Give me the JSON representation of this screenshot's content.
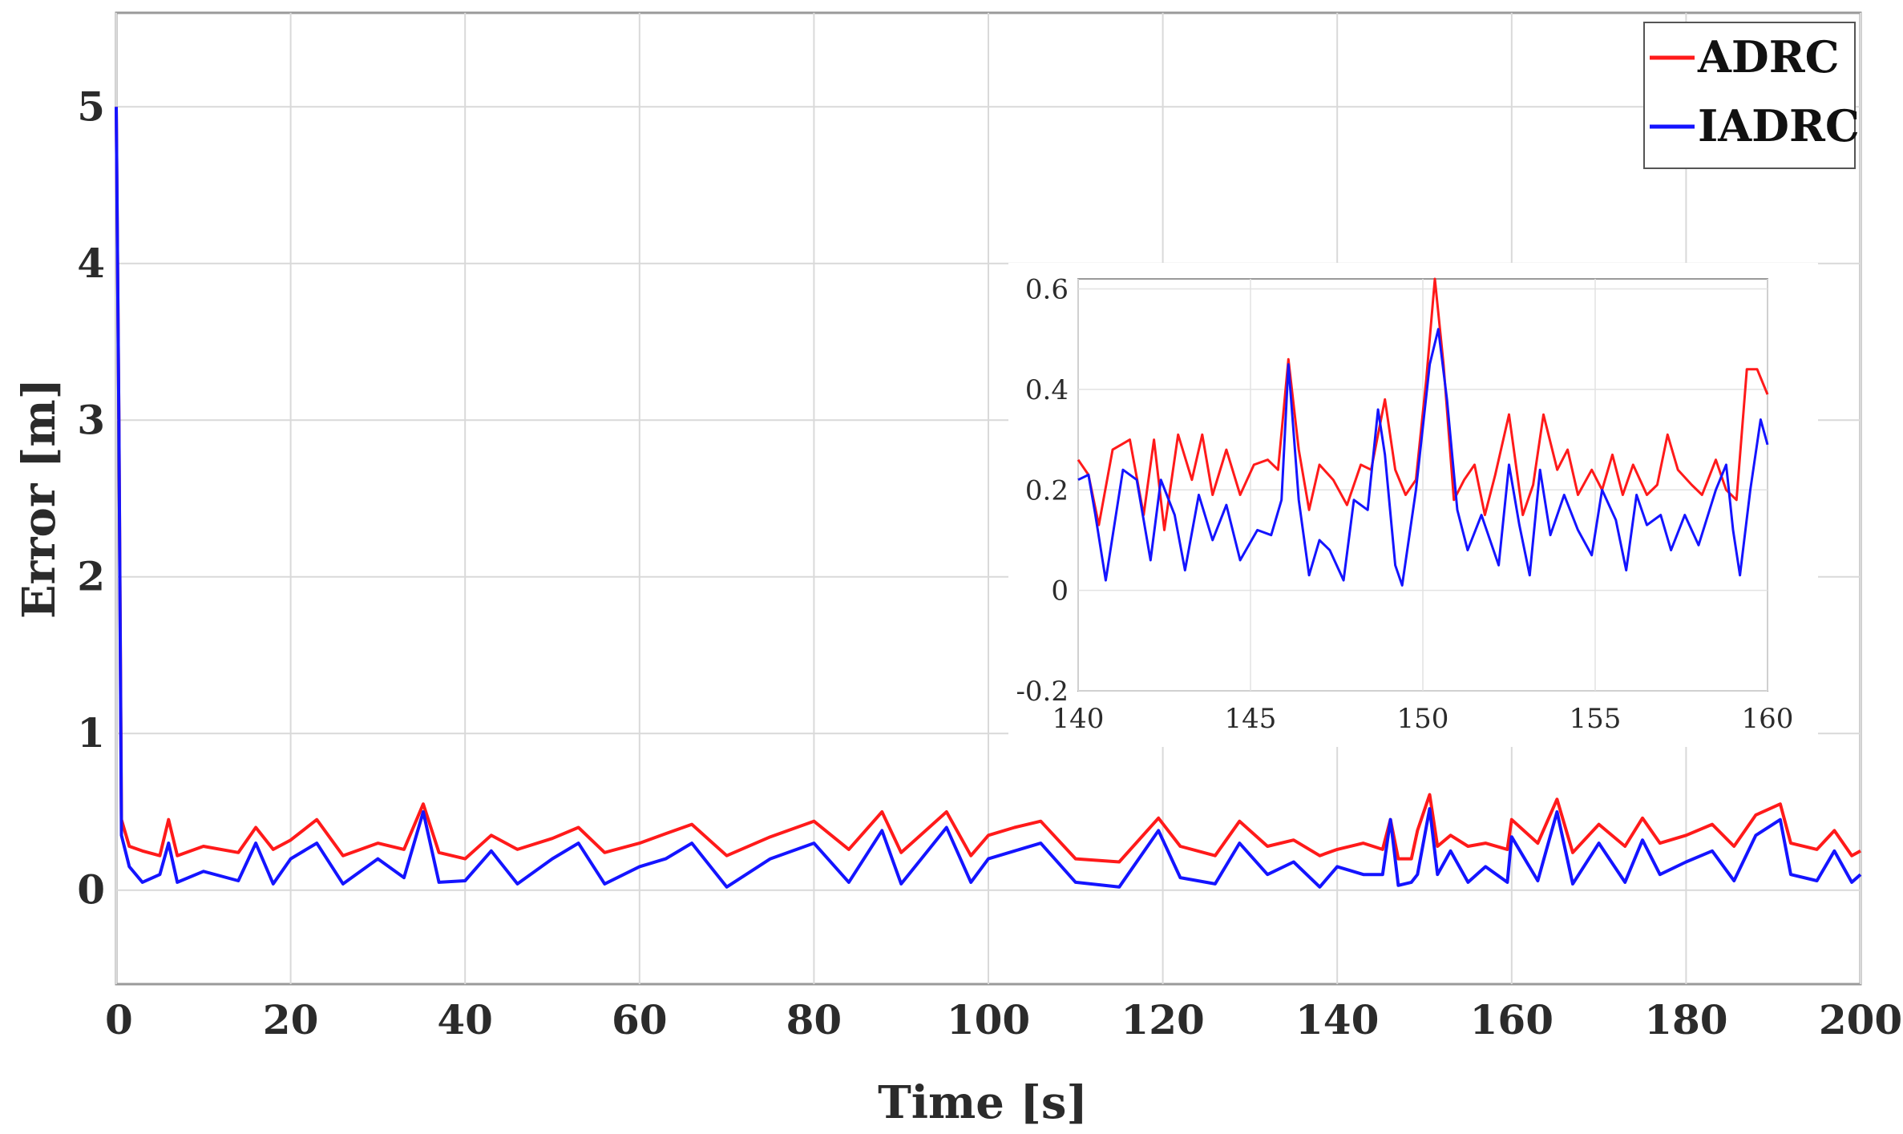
{
  "chart_data": {
    "type": "line",
    "title": "",
    "xlabel": "Time [s]",
    "ylabel": "Error [m]",
    "xlim": [
      0,
      200
    ],
    "ylim": [
      -0.6,
      5.6
    ],
    "grid": true,
    "x_ticks": [
      "0",
      "20",
      "40",
      "60",
      "80",
      "100",
      "120",
      "140",
      "160",
      "180",
      "200"
    ],
    "y_ticks": [
      "0",
      "1",
      "2",
      "3",
      "4",
      "5"
    ],
    "legend": {
      "position": "top-right",
      "entries": [
        "ADRC",
        "IADRC"
      ]
    },
    "colors": {
      "ADRC": "#ff1a1a",
      "IADRC": "#1414ff"
    },
    "series": [
      {
        "name": "ADRC",
        "x": [
          0,
          0.3,
          0.6,
          1.5,
          3,
          5,
          6,
          7,
          10,
          14,
          16,
          18,
          20,
          23,
          26,
          30,
          33,
          35.2,
          37,
          40,
          43,
          46,
          50,
          53,
          56,
          60,
          63,
          66,
          70,
          75,
          80,
          84,
          87.8,
          90,
          95.2,
          98,
          100,
          103,
          106,
          110,
          115,
          119.5,
          122,
          126,
          128.8,
          132,
          135,
          138,
          140,
          143,
          145.2,
          146.1,
          147,
          148.5,
          149.2,
          150.6,
          151.5,
          153,
          155,
          157,
          159.5,
          160,
          163,
          165.2,
          167,
          170,
          173,
          175,
          177,
          180,
          183,
          185.5,
          188,
          190.8,
          192,
          195,
          197,
          199,
          200
        ],
        "y": [
          5,
          3,
          0.45,
          0.28,
          0.25,
          0.22,
          0.45,
          0.22,
          0.28,
          0.24,
          0.4,
          0.26,
          0.32,
          0.45,
          0.22,
          0.3,
          0.26,
          0.55,
          0.24,
          0.2,
          0.35,
          0.26,
          0.33,
          0.4,
          0.24,
          0.3,
          0.36,
          0.42,
          0.22,
          0.34,
          0.44,
          0.26,
          0.5,
          0.24,
          0.5,
          0.22,
          0.35,
          0.4,
          0.44,
          0.2,
          0.18,
          0.46,
          0.28,
          0.22,
          0.44,
          0.28,
          0.32,
          0.22,
          0.26,
          0.3,
          0.26,
          0.45,
          0.2,
          0.2,
          0.38,
          0.61,
          0.28,
          0.35,
          0.28,
          0.3,
          0.26,
          0.45,
          0.3,
          0.58,
          0.24,
          0.42,
          0.28,
          0.46,
          0.3,
          0.35,
          0.42,
          0.28,
          0.48,
          0.55,
          0.3,
          0.26,
          0.38,
          0.22,
          0.25
        ]
      },
      {
        "name": "IADRC",
        "x": [
          0,
          0.3,
          0.6,
          1.5,
          3,
          5,
          6,
          7,
          10,
          14,
          16,
          18,
          20,
          23,
          26,
          30,
          33,
          35.2,
          37,
          40,
          43,
          46,
          50,
          53,
          56,
          60,
          63,
          66,
          70,
          75,
          80,
          84,
          87.8,
          90,
          95.2,
          98,
          100,
          103,
          106,
          110,
          115,
          119.5,
          122,
          126,
          128.8,
          132,
          135,
          138,
          140,
          143,
          145.2,
          146.1,
          147,
          148.5,
          149.2,
          150.6,
          151.5,
          153,
          155,
          157,
          159.5,
          160,
          163,
          165.2,
          167,
          170,
          173,
          175,
          177,
          180,
          183,
          185.5,
          188,
          190.8,
          192,
          195,
          197,
          199,
          200
        ],
        "y": [
          5,
          3,
          0.35,
          0.15,
          0.05,
          0.1,
          0.3,
          0.05,
          0.12,
          0.06,
          0.3,
          0.04,
          0.2,
          0.3,
          0.04,
          0.2,
          0.08,
          0.5,
          0.05,
          0.06,
          0.25,
          0.04,
          0.2,
          0.3,
          0.04,
          0.15,
          0.2,
          0.3,
          0.02,
          0.2,
          0.3,
          0.05,
          0.38,
          0.04,
          0.4,
          0.05,
          0.2,
          0.25,
          0.3,
          0.05,
          0.02,
          0.38,
          0.08,
          0.04,
          0.3,
          0.1,
          0.18,
          0.02,
          0.15,
          0.1,
          0.1,
          0.45,
          0.03,
          0.05,
          0.1,
          0.52,
          0.1,
          0.25,
          0.05,
          0.15,
          0.05,
          0.34,
          0.06,
          0.5,
          0.04,
          0.3,
          0.05,
          0.32,
          0.1,
          0.18,
          0.25,
          0.06,
          0.35,
          0.45,
          0.1,
          0.06,
          0.25,
          0.05,
          0.1
        ]
      }
    ],
    "inset": {
      "xlim": [
        140,
        160
      ],
      "ylim": [
        -0.2,
        0.62
      ],
      "x_ticks": [
        "140",
        "145",
        "150",
        "155",
        "160"
      ],
      "y_ticks": [
        "-0.2",
        "0",
        "0.2",
        "0.4",
        "0.6"
      ],
      "series": [
        {
          "name": "ADRC",
          "x": [
            140,
            140.3,
            140.6,
            141,
            141.5,
            141.9,
            142.2,
            142.5,
            142.9,
            143.3,
            143.6,
            143.9,
            144.3,
            144.7,
            145.1,
            145.5,
            145.8,
            146.1,
            146.4,
            146.7,
            147,
            147.4,
            147.8,
            148.2,
            148.5,
            148.9,
            149.2,
            149.5,
            149.8,
            150.1,
            150.35,
            150.6,
            150.9,
            151.2,
            151.5,
            151.8,
            152.1,
            152.5,
            152.9,
            153.2,
            153.5,
            153.9,
            154.2,
            154.5,
            154.9,
            155.2,
            155.5,
            155.8,
            156.1,
            156.5,
            156.8,
            157.1,
            157.4,
            157.8,
            158.1,
            158.5,
            158.8,
            159.1,
            159.4,
            159.7,
            160
          ],
          "y": [
            0.26,
            0.23,
            0.13,
            0.28,
            0.3,
            0.15,
            0.3,
            0.12,
            0.31,
            0.22,
            0.31,
            0.19,
            0.28,
            0.19,
            0.25,
            0.26,
            0.24,
            0.46,
            0.28,
            0.16,
            0.25,
            0.22,
            0.17,
            0.25,
            0.24,
            0.38,
            0.24,
            0.19,
            0.22,
            0.42,
            0.62,
            0.45,
            0.18,
            0.22,
            0.25,
            0.15,
            0.23,
            0.35,
            0.15,
            0.21,
            0.35,
            0.24,
            0.28,
            0.19,
            0.24,
            0.2,
            0.27,
            0.19,
            0.25,
            0.19,
            0.21,
            0.31,
            0.24,
            0.21,
            0.19,
            0.26,
            0.2,
            0.18,
            0.44,
            0.44,
            0.39
          ]
        },
        {
          "name": "IADRC",
          "x": [
            140,
            140.3,
            140.5,
            140.8,
            141.3,
            141.7,
            142.1,
            142.4,
            142.8,
            143.1,
            143.5,
            143.9,
            144.3,
            144.7,
            145.2,
            145.6,
            145.9,
            146.1,
            146.4,
            146.7,
            147,
            147.3,
            147.7,
            148,
            148.4,
            148.7,
            148.9,
            149.2,
            149.4,
            149.8,
            150.2,
            150.45,
            150.7,
            151,
            151.3,
            151.7,
            152.2,
            152.5,
            152.8,
            153.1,
            153.4,
            153.7,
            154.1,
            154.5,
            154.9,
            155.2,
            155.6,
            155.9,
            156.2,
            156.5,
            156.9,
            157.2,
            157.6,
            158,
            158.5,
            158.8,
            159,
            159.2,
            159.5,
            159.8,
            160
          ],
          "y": [
            0.22,
            0.23,
            0.15,
            0.02,
            0.24,
            0.22,
            0.06,
            0.22,
            0.15,
            0.04,
            0.19,
            0.1,
            0.17,
            0.06,
            0.12,
            0.11,
            0.18,
            0.45,
            0.18,
            0.03,
            0.1,
            0.08,
            0.02,
            0.18,
            0.16,
            0.36,
            0.27,
            0.05,
            0.01,
            0.2,
            0.45,
            0.52,
            0.38,
            0.16,
            0.08,
            0.15,
            0.05,
            0.25,
            0.13,
            0.03,
            0.24,
            0.11,
            0.19,
            0.12,
            0.07,
            0.2,
            0.14,
            0.04,
            0.19,
            0.13,
            0.15,
            0.08,
            0.15,
            0.09,
            0.2,
            0.25,
            0.12,
            0.03,
            0.2,
            0.34,
            0.29
          ]
        }
      ]
    }
  }
}
